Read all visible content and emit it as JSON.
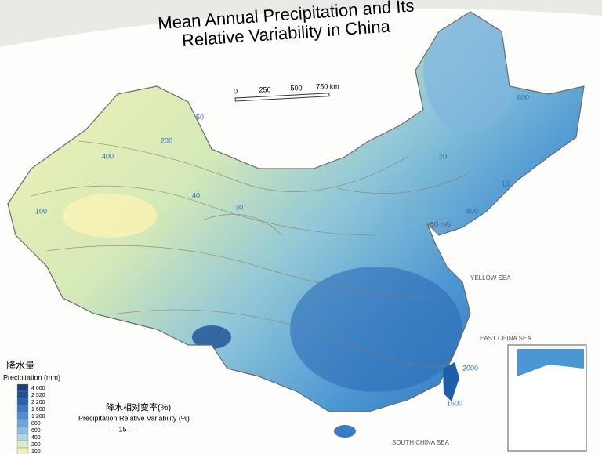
{
  "title": {
    "line1": "Mean Annual Precipitation and Its",
    "line2": "Relative Variability in China"
  },
  "scale_bar": {
    "labels": [
      "0",
      "250",
      "500",
      "750 km"
    ]
  },
  "legend": {
    "title_cn": "降水量",
    "title": "Precipitation (mm)",
    "classes": [
      "4 000",
      "2 520",
      "2 200",
      "1 600",
      "1 200",
      "800",
      "600",
      "400",
      "200",
      "100"
    ],
    "variability_cn": "降水相对变率(%)",
    "variability": "Precipitation Relative Variability (%)",
    "variability_sample": "— 15 —"
  },
  "seas": {
    "bohai": "BO HAI",
    "yellow": "YELLOW SEA",
    "east": "EAST CHINA SEA",
    "south": "SOUTH CHINA SEA"
  },
  "contour_labels": [
    "600",
    "400",
    "200",
    "100",
    "50",
    "40",
    "30",
    "20",
    "15",
    "1600",
    "2000",
    "800"
  ]
}
